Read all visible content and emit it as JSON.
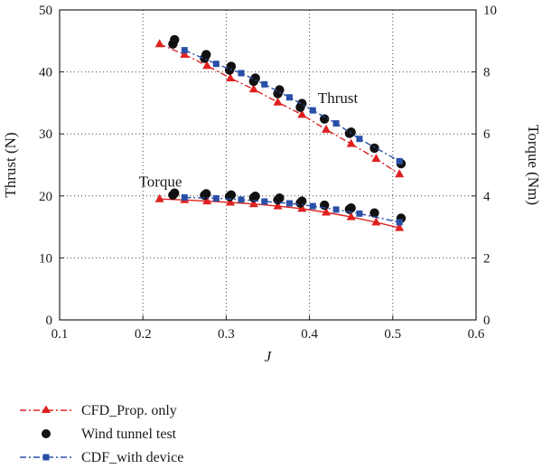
{
  "chart_data": {
    "type": "line",
    "xlabel": "J",
    "ylabel_left": "Thrust (N)",
    "ylabel_right": "Torque (Nm)",
    "xlim": [
      0.1,
      0.6
    ],
    "ylim_left": [
      0,
      50
    ],
    "ylim_right": [
      0,
      10
    ],
    "xticks": [
      "0.1",
      "0.2",
      "0.3",
      "0.4",
      "0.5",
      "0.6"
    ],
    "yticks_left": [
      "0",
      "10",
      "20",
      "30",
      "40",
      "50"
    ],
    "yticks_right": [
      "0",
      "2",
      "4",
      "6",
      "8",
      "10"
    ],
    "grid": true,
    "grid_style": "dotted",
    "legend_position": "bottom-left, below plot",
    "annotations": [
      {
        "text": "Thrust",
        "x": 0.41,
        "y_left": 35
      },
      {
        "text": "Torque",
        "x": 0.195,
        "y_left": 21.5
      }
    ],
    "series": [
      {
        "name": "CFD_Prop. only",
        "color": "#e02020",
        "marker": "triangle",
        "line": "dash-dot",
        "axis": "left",
        "x": [
          0.22,
          0.25,
          0.277,
          0.305,
          0.333,
          0.362,
          0.391,
          0.42,
          0.45,
          0.48,
          0.508
        ],
        "y": [
          44.5,
          42.8,
          41.0,
          39.0,
          37.2,
          35.1,
          33.1,
          30.7,
          28.4,
          26.0,
          23.5
        ]
      },
      {
        "name": "CFD_Prop. only (torque)",
        "color": "#e02020",
        "marker": "triangle",
        "line": "solid",
        "axis": "right",
        "x": [
          0.22,
          0.25,
          0.277,
          0.305,
          0.333,
          0.362,
          0.391,
          0.42,
          0.45,
          0.48,
          0.508
        ],
        "y": [
          3.9,
          3.87,
          3.83,
          3.79,
          3.74,
          3.67,
          3.59,
          3.47,
          3.32,
          3.15,
          2.97
        ]
      },
      {
        "name": "Wind tunnel test",
        "color": "#111111",
        "marker": "circle",
        "line": "none",
        "axis": "left",
        "x": [
          0.236,
          0.238,
          0.274,
          0.276,
          0.304,
          0.306,
          0.333,
          0.335,
          0.362,
          0.364,
          0.389,
          0.391,
          0.418,
          0.448,
          0.45,
          0.478,
          0.51
        ],
        "y": [
          44.5,
          45.2,
          42.2,
          42.8,
          40.3,
          40.9,
          38.5,
          39.0,
          36.5,
          37.1,
          34.3,
          34.9,
          32.4,
          30.1,
          30.3,
          27.7,
          25.2
        ]
      },
      {
        "name": "Wind tunnel test (torque)",
        "color": "#111111",
        "marker": "circle",
        "line": "none",
        "axis": "right",
        "x": [
          0.236,
          0.238,
          0.274,
          0.276,
          0.304,
          0.306,
          0.333,
          0.335,
          0.362,
          0.364,
          0.389,
          0.391,
          0.418,
          0.448,
          0.45,
          0.478,
          0.51
        ],
        "y": [
          4.03,
          4.09,
          4.02,
          4.07,
          3.98,
          4.03,
          3.94,
          3.99,
          3.87,
          3.93,
          3.77,
          3.83,
          3.7,
          3.57,
          3.61,
          3.45,
          3.28
        ]
      },
      {
        "name": "CDF_with device",
        "color": "#2a4fa8",
        "marker": "square",
        "line": "dash-dot",
        "axis": "left",
        "x": [
          0.25,
          0.288,
          0.318,
          0.346,
          0.376,
          0.404,
          0.432,
          0.46,
          0.508
        ],
        "y": [
          43.5,
          41.3,
          39.8,
          38.0,
          35.9,
          33.8,
          31.7,
          29.2,
          25.6
        ]
      },
      {
        "name": "CDF_with device (torque)",
        "color": "#2a4fa8",
        "marker": "square",
        "line": "dash-dot",
        "axis": "right",
        "x": [
          0.25,
          0.288,
          0.318,
          0.346,
          0.376,
          0.404,
          0.432,
          0.46,
          0.508
        ],
        "y": [
          3.95,
          3.92,
          3.88,
          3.82,
          3.76,
          3.67,
          3.56,
          3.43,
          3.15
        ]
      }
    ]
  },
  "legend": [
    {
      "label": "CFD_Prop. only",
      "color": "#e02020",
      "marker": "triangle"
    },
    {
      "label": "Wind tunnel test",
      "color": "#111111",
      "marker": "circle"
    },
    {
      "label": "CDF_with device",
      "color": "#2a4fa8",
      "marker": "square"
    }
  ]
}
